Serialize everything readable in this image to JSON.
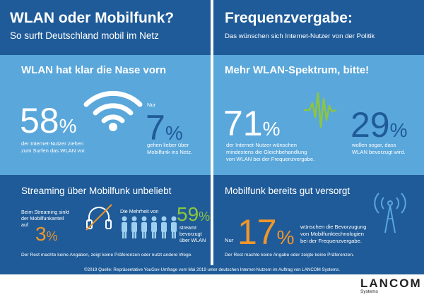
{
  "colors": {
    "dark_blue": "#1f5b98",
    "mid_blue": "#3f87c6",
    "light_blue": "#5aa7db",
    "accent_blue": "#2f8fd8",
    "orange": "#f0962a",
    "green": "#8cc63f",
    "white": "#ffffff"
  },
  "left": {
    "title": "WLAN oder Mobilfunk?",
    "subtitle": "So surft Deutschland mobil im Netz",
    "headline": "WLAN hat klar die Nase vorn",
    "stat1": {
      "number": "58",
      "unit": "%",
      "text_line1": "der Internet-Nutzer ziehen",
      "text_line2": "zum Surfen das WLAN vor."
    },
    "stat2": {
      "prefix_line1": "Nur",
      "number": "7",
      "unit": "%",
      "text_line1": "gehen lieber über",
      "text_line2": "Mobilfunk ins Netz."
    },
    "streaming_title": "Streaming über Mobilfunk unbeliebt",
    "stream_left": {
      "text_line1": "Beim Streaming sinkt",
      "text_line2": "der Mobilfunkanteil",
      "text_line3": "auf",
      "number": "3",
      "unit": "%"
    },
    "stream_right": {
      "text_line1": "Die Mehrheit von",
      "number": "59",
      "unit": "%",
      "text_line2": "streamt bevorzugt",
      "text_line3": "über WLAN"
    },
    "footnote": "Der Rest machte keine Angaben, zeigt keine Präferenzen oder nutzt andere Wege."
  },
  "right": {
    "title": "Frequenzvergabe:",
    "subtitle": "Das wünschen sich Internet-Nutzer von der Politik",
    "headline": "Mehr WLAN-Spektrum, bitte!",
    "stat1": {
      "number": "71",
      "unit": "%",
      "text_line1": "der Internet-Nutzer wünschen",
      "text_line2": "mindestens die Gleichbehandlung",
      "text_line3": "von WLAN bei der Frequenzvergabe."
    },
    "stat2": {
      "number": "29",
      "unit": "%",
      "text_line1": "wollen sogar, dass",
      "text_line2": "WLAN bevorzugt wird."
    },
    "mobil_title": "Mobilfunk bereits gut versorgt",
    "stat3": {
      "prefix": "Nur",
      "number": "17",
      "unit": "%",
      "text_line1": "wünschen die Bevorzugung",
      "text_line2": "von Mobilfunktechnologien",
      "text_line3": "bei der Frequenzvergabe."
    },
    "footnote": "Der Rest machte keine Angabe oder zeigte keine Präferenzen."
  },
  "source": "©2019 Quelle: Repräsentative YouGov-Umfrage vom Mai 2019 unter deutschen Internet-Nutzern im Auftrag von LANCOM Systems.",
  "logo": {
    "name": "LANCOM",
    "sub": "Systems"
  },
  "icons": [
    "wifi-icon",
    "heartbeat-signal-icon",
    "headphones-crossed-icon",
    "people-group-icon",
    "antenna-tower-icon"
  ]
}
